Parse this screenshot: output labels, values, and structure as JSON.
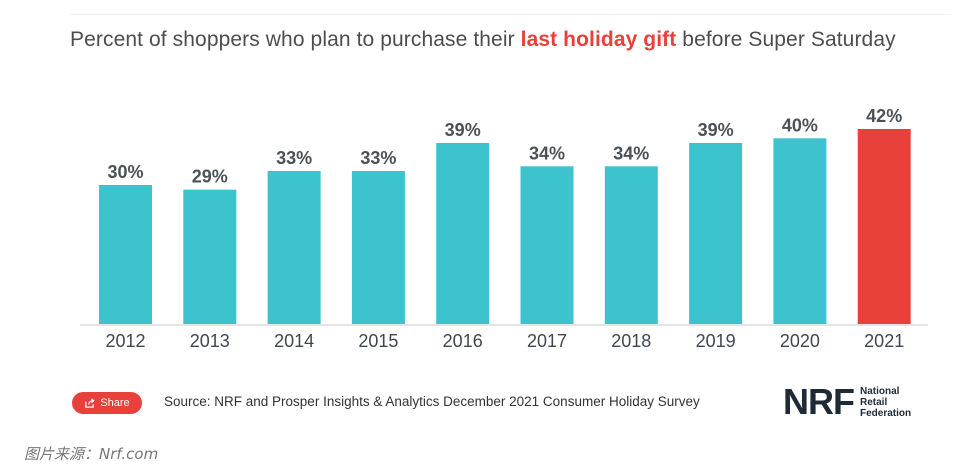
{
  "title": {
    "prefix": "Percent of shoppers who plan to purchase their ",
    "highlight": "last holiday gift",
    "suffix": " before Super Saturday"
  },
  "footer": {
    "share_label": "Share",
    "source": "Source: NRF and Prosper Insights & Analytics December 2021 Consumer Holiday Survey",
    "logo_mark": "NRF",
    "logo_line1": "National",
    "logo_line2": "Retail",
    "logo_line3": "Federation"
  },
  "caption": "图片来源：Nrf.com",
  "colors": {
    "bar": "#3dc3cd",
    "highlight_bar": "#e8403a",
    "highlight_text": "#e8403a"
  },
  "chart_data": {
    "type": "bar",
    "title": "Percent of shoppers who plan to purchase their last holiday gift before Super Saturday",
    "categories": [
      "2012",
      "2013",
      "2014",
      "2015",
      "2016",
      "2017",
      "2018",
      "2019",
      "2020",
      "2021"
    ],
    "values": [
      30,
      29,
      33,
      33,
      39,
      34,
      34,
      39,
      40,
      42
    ],
    "value_labels": [
      "30%",
      "29%",
      "33%",
      "33%",
      "39%",
      "34%",
      "34%",
      "39%",
      "40%",
      "42%"
    ],
    "highlight_category": "2021",
    "unit": "%",
    "ylim": [
      0,
      42
    ],
    "grid": false,
    "legend": "none"
  }
}
